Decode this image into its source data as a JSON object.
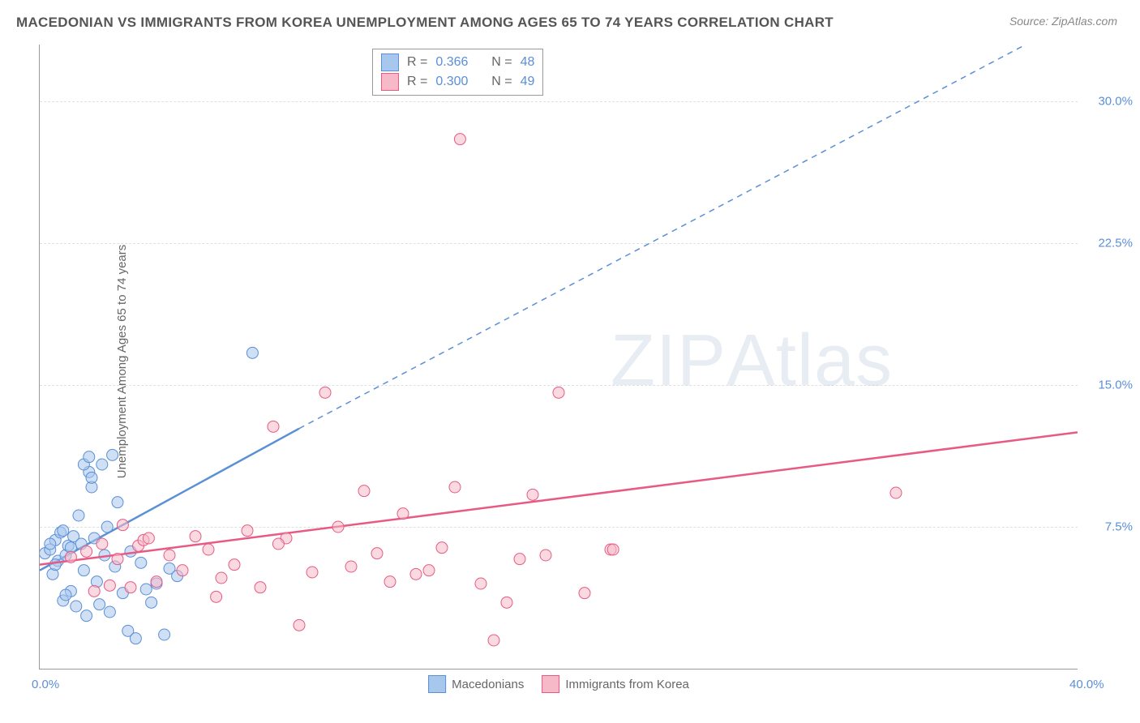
{
  "title": "MACEDONIAN VS IMMIGRANTS FROM KOREA UNEMPLOYMENT AMONG AGES 65 TO 74 YEARS CORRELATION CHART",
  "source": "Source: ZipAtlas.com",
  "ylabel": "Unemployment Among Ages 65 to 74 years",
  "watermark_a": "ZIP",
  "watermark_b": "Atlas",
  "chart": {
    "type": "scatter",
    "xlim": [
      0,
      40
    ],
    "ylim": [
      0,
      33
    ],
    "xticks": [
      {
        "v": 0.0,
        "label": "0.0%"
      },
      {
        "v": 40.0,
        "label": "40.0%"
      }
    ],
    "yticks": [
      {
        "v": 7.5,
        "label": "7.5%"
      },
      {
        "v": 15.0,
        "label": "15.0%"
      },
      {
        "v": 22.5,
        "label": "22.5%"
      },
      {
        "v": 30.0,
        "label": "30.0%"
      }
    ],
    "grid_color": "#e0e0e0",
    "background_color": "#ffffff",
    "marker_radius": 7,
    "marker_opacity": 0.55,
    "series": [
      {
        "name": "Macedonians",
        "fill": "#a7c7ec",
        "stroke": "#5b8fd6",
        "trend_solid": {
          "x1": 0,
          "y1": 5.2,
          "x2": 10,
          "y2": 12.7
        },
        "trend_dash": {
          "x1": 10,
          "y1": 12.7,
          "x2": 38,
          "y2": 33
        },
        "R": "0.366",
        "N": "48",
        "points": [
          [
            0.2,
            6.1
          ],
          [
            0.4,
            6.3
          ],
          [
            0.5,
            5.0
          ],
          [
            0.6,
            6.8
          ],
          [
            0.7,
            5.7
          ],
          [
            0.8,
            7.2
          ],
          [
            0.9,
            3.6
          ],
          [
            1.0,
            6.0
          ],
          [
            1.1,
            6.5
          ],
          [
            1.2,
            4.1
          ],
          [
            1.3,
            7.0
          ],
          [
            1.4,
            3.3
          ],
          [
            1.5,
            8.1
          ],
          [
            1.6,
            6.6
          ],
          [
            1.7,
            5.2
          ],
          [
            1.8,
            2.8
          ],
          [
            1.9,
            10.4
          ],
          [
            2.0,
            9.6
          ],
          [
            2.1,
            6.9
          ],
          [
            2.2,
            4.6
          ],
          [
            2.3,
            3.4
          ],
          [
            2.4,
            10.8
          ],
          [
            2.5,
            6.0
          ],
          [
            2.6,
            7.5
          ],
          [
            2.7,
            3.0
          ],
          [
            2.8,
            11.3
          ],
          [
            2.9,
            5.4
          ],
          [
            3.0,
            8.8
          ],
          [
            3.2,
            4.0
          ],
          [
            3.4,
            2.0
          ],
          [
            3.5,
            6.2
          ],
          [
            3.7,
            1.6
          ],
          [
            3.9,
            5.6
          ],
          [
            4.1,
            4.2
          ],
          [
            4.3,
            3.5
          ],
          [
            4.5,
            4.5
          ],
          [
            4.8,
            1.8
          ],
          [
            5.0,
            5.3
          ],
          [
            5.3,
            4.9
          ],
          [
            1.7,
            10.8
          ],
          [
            1.9,
            11.2
          ],
          [
            2.0,
            10.1
          ],
          [
            8.2,
            16.7
          ],
          [
            0.4,
            6.6
          ],
          [
            0.6,
            5.5
          ],
          [
            0.9,
            7.3
          ],
          [
            1.0,
            3.9
          ],
          [
            1.2,
            6.4
          ]
        ]
      },
      {
        "name": "Immigants from Korea",
        "legend_label": "Immigrants from Korea",
        "fill": "#f6b9c8",
        "stroke": "#e85a84",
        "trend_solid": {
          "x1": 0,
          "y1": 5.5,
          "x2": 40,
          "y2": 12.5
        },
        "R": "0.300",
        "N": "49",
        "points": [
          [
            1.2,
            5.9
          ],
          [
            1.8,
            6.2
          ],
          [
            2.1,
            4.1
          ],
          [
            2.4,
            6.6
          ],
          [
            2.7,
            4.4
          ],
          [
            3.0,
            5.8
          ],
          [
            3.5,
            4.3
          ],
          [
            3.8,
            6.5
          ],
          [
            4.0,
            6.8
          ],
          [
            4.5,
            4.6
          ],
          [
            5.0,
            6.0
          ],
          [
            5.5,
            5.2
          ],
          [
            6.0,
            7.0
          ],
          [
            6.5,
            6.3
          ],
          [
            7.0,
            4.8
          ],
          [
            7.5,
            5.5
          ],
          [
            8.0,
            7.3
          ],
          [
            8.5,
            4.3
          ],
          [
            9.0,
            12.8
          ],
          [
            9.5,
            6.9
          ],
          [
            10.0,
            2.3
          ],
          [
            10.5,
            5.1
          ],
          [
            11.0,
            14.6
          ],
          [
            11.5,
            7.5
          ],
          [
            12.0,
            5.4
          ],
          [
            12.5,
            9.4
          ],
          [
            13.0,
            6.1
          ],
          [
            13.5,
            4.6
          ],
          [
            14.0,
            8.2
          ],
          [
            14.5,
            5.0
          ],
          [
            15.0,
            5.2
          ],
          [
            15.5,
            6.4
          ],
          [
            16.0,
            9.6
          ],
          [
            16.2,
            28.0
          ],
          [
            17.0,
            4.5
          ],
          [
            17.5,
            1.5
          ],
          [
            18.0,
            3.5
          ],
          [
            18.5,
            5.8
          ],
          [
            19.0,
            9.2
          ],
          [
            19.5,
            6.0
          ],
          [
            20.0,
            14.6
          ],
          [
            21.0,
            4.0
          ],
          [
            22.0,
            6.3
          ],
          [
            22.1,
            6.3
          ],
          [
            4.2,
            6.9
          ],
          [
            6.8,
            3.8
          ],
          [
            9.2,
            6.6
          ],
          [
            33.0,
            9.3
          ],
          [
            3.2,
            7.6
          ]
        ]
      }
    ]
  },
  "legend_text": {
    "R_label": "R  =",
    "N_label": "N  ="
  }
}
